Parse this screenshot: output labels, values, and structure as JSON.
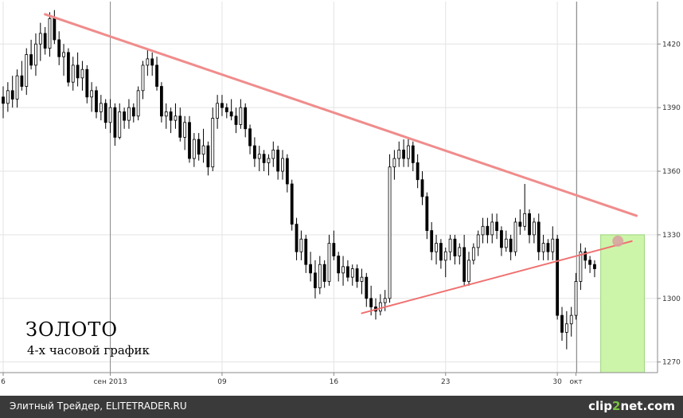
{
  "chart_data": {
    "type": "candlestick",
    "title": "ЗОЛОТО",
    "subtitle": "4-х часовой график",
    "ylim": [
      1265,
      1440
    ],
    "y_ticks": [
      1270,
      1300,
      1330,
      1360,
      1390,
      1420
    ],
    "x_ticks": [
      {
        "label": "6",
        "bar": 0
      },
      {
        "label": "сен 2013",
        "bar": 23
      },
      {
        "label": "09",
        "bar": 47
      },
      {
        "label": "16",
        "bar": 71
      },
      {
        "label": "23",
        "bar": 95
      },
      {
        "label": "30",
        "bar": 119
      },
      {
        "label": "окт",
        "bar": 123
      }
    ],
    "month_separators": [
      23,
      123
    ],
    "candles": [
      [
        1395,
        1400,
        1385,
        1392
      ],
      [
        1392,
        1402,
        1388,
        1398
      ],
      [
        1398,
        1405,
        1390,
        1394
      ],
      [
        1394,
        1408,
        1390,
        1405
      ],
      [
        1405,
        1412,
        1398,
        1400
      ],
      [
        1400,
        1418,
        1396,
        1415
      ],
      [
        1415,
        1422,
        1408,
        1410
      ],
      [
        1410,
        1425,
        1405,
        1420
      ],
      [
        1420,
        1430,
        1412,
        1425
      ],
      [
        1425,
        1428,
        1415,
        1418
      ],
      [
        1418,
        1435,
        1414,
        1432
      ],
      [
        1432,
        1436,
        1420,
        1422
      ],
      [
        1422,
        1426,
        1410,
        1414
      ],
      [
        1414,
        1420,
        1405,
        1416
      ],
      [
        1416,
        1418,
        1400,
        1402
      ],
      [
        1402,
        1414,
        1398,
        1410
      ],
      [
        1410,
        1416,
        1400,
        1404
      ],
      [
        1404,
        1412,
        1398,
        1408
      ],
      [
        1408,
        1410,
        1392,
        1395
      ],
      [
        1395,
        1402,
        1388,
        1398
      ],
      [
        1398,
        1400,
        1385,
        1388
      ],
      [
        1388,
        1396,
        1384,
        1392
      ],
      [
        1392,
        1394,
        1380,
        1383
      ],
      [
        1383,
        1394,
        1378,
        1390
      ],
      [
        1390,
        1392,
        1372,
        1376
      ],
      [
        1376,
        1392,
        1375,
        1388
      ],
      [
        1388,
        1390,
        1380,
        1384
      ],
      [
        1384,
        1394,
        1380,
        1390
      ],
      [
        1390,
        1392,
        1383,
        1386
      ],
      [
        1386,
        1400,
        1384,
        1398
      ],
      [
        1398,
        1412,
        1394,
        1410
      ],
      [
        1410,
        1418,
        1405,
        1413
      ],
      [
        1413,
        1416,
        1405,
        1410
      ],
      [
        1410,
        1414,
        1398,
        1400
      ],
      [
        1400,
        1402,
        1383,
        1386
      ],
      [
        1386,
        1392,
        1380,
        1388
      ],
      [
        1388,
        1390,
        1378,
        1384
      ],
      [
        1384,
        1392,
        1380,
        1386
      ],
      [
        1386,
        1390,
        1374,
        1376
      ],
      [
        1376,
        1386,
        1370,
        1383
      ],
      [
        1383,
        1386,
        1364,
        1366
      ],
      [
        1366,
        1378,
        1362,
        1375
      ],
      [
        1375,
        1378,
        1365,
        1368
      ],
      [
        1368,
        1380,
        1364,
        1372
      ],
      [
        1372,
        1374,
        1358,
        1362
      ],
      [
        1362,
        1390,
        1360,
        1385
      ],
      [
        1385,
        1396,
        1380,
        1392
      ],
      [
        1392,
        1396,
        1386,
        1390
      ],
      [
        1390,
        1392,
        1385,
        1388
      ],
      [
        1388,
        1394,
        1384,
        1386
      ],
      [
        1386,
        1390,
        1378,
        1382
      ],
      [
        1382,
        1394,
        1380,
        1390
      ],
      [
        1390,
        1392,
        1376,
        1380
      ],
      [
        1380,
        1382,
        1368,
        1372
      ],
      [
        1372,
        1376,
        1362,
        1366
      ],
      [
        1366,
        1372,
        1360,
        1368
      ],
      [
        1368,
        1370,
        1360,
        1364
      ],
      [
        1364,
        1368,
        1358,
        1366
      ],
      [
        1366,
        1374,
        1362,
        1370
      ],
      [
        1370,
        1372,
        1356,
        1360
      ],
      [
        1360,
        1370,
        1356,
        1366
      ],
      [
        1366,
        1368,
        1350,
        1354
      ],
      [
        1354,
        1356,
        1332,
        1335
      ],
      [
        1335,
        1338,
        1318,
        1322
      ],
      [
        1322,
        1332,
        1318,
        1328
      ],
      [
        1328,
        1330,
        1312,
        1316
      ],
      [
        1316,
        1322,
        1308,
        1312
      ],
      [
        1312,
        1318,
        1300,
        1305
      ],
      [
        1305,
        1320,
        1302,
        1316
      ],
      [
        1316,
        1318,
        1305,
        1308
      ],
      [
        1308,
        1330,
        1306,
        1326
      ],
      [
        1326,
        1332,
        1318,
        1320
      ],
      [
        1320,
        1322,
        1308,
        1312
      ],
      [
        1312,
        1320,
        1306,
        1315
      ],
      [
        1315,
        1318,
        1308,
        1310
      ],
      [
        1310,
        1316,
        1306,
        1314
      ],
      [
        1314,
        1316,
        1305,
        1308
      ],
      [
        1308,
        1314,
        1302,
        1310
      ],
      [
        1310,
        1312,
        1296,
        1300
      ],
      [
        1300,
        1306,
        1292,
        1296
      ],
      [
        1296,
        1300,
        1290,
        1294
      ],
      [
        1294,
        1302,
        1292,
        1298
      ],
      [
        1298,
        1304,
        1294,
        1300
      ],
      [
        1300,
        1368,
        1298,
        1362
      ],
      [
        1362,
        1370,
        1356,
        1366
      ],
      [
        1366,
        1374,
        1362,
        1370
      ],
      [
        1370,
        1375,
        1362,
        1366
      ],
      [
        1366,
        1376,
        1362,
        1372
      ],
      [
        1372,
        1374,
        1360,
        1364
      ],
      [
        1364,
        1368,
        1352,
        1356
      ],
      [
        1356,
        1360,
        1344,
        1348
      ],
      [
        1348,
        1350,
        1328,
        1332
      ],
      [
        1332,
        1336,
        1318,
        1322
      ],
      [
        1322,
        1330,
        1316,
        1326
      ],
      [
        1326,
        1328,
        1314,
        1318
      ],
      [
        1318,
        1324,
        1310,
        1322
      ],
      [
        1322,
        1330,
        1318,
        1328
      ],
      [
        1328,
        1330,
        1316,
        1320
      ],
      [
        1320,
        1326,
        1316,
        1324
      ],
      [
        1324,
        1330,
        1306,
        1308
      ],
      [
        1308,
        1322,
        1306,
        1318
      ],
      [
        1318,
        1326,
        1316,
        1324
      ],
      [
        1324,
        1332,
        1320,
        1330
      ],
      [
        1330,
        1338,
        1326,
        1334
      ],
      [
        1334,
        1338,
        1326,
        1330
      ],
      [
        1330,
        1340,
        1326,
        1336
      ],
      [
        1336,
        1340,
        1328,
        1332
      ],
      [
        1332,
        1334,
        1320,
        1324
      ],
      [
        1324,
        1332,
        1322,
        1328
      ],
      [
        1328,
        1330,
        1318,
        1322
      ],
      [
        1322,
        1338,
        1320,
        1336
      ],
      [
        1336,
        1342,
        1330,
        1334
      ],
      [
        1334,
        1354,
        1332,
        1340
      ],
      [
        1340,
        1342,
        1326,
        1330
      ],
      [
        1330,
        1338,
        1326,
        1336
      ],
      [
        1336,
        1340,
        1318,
        1322
      ],
      [
        1322,
        1330,
        1318,
        1326
      ],
      [
        1326,
        1328,
        1318,
        1322
      ],
      [
        1322,
        1334,
        1318,
        1328
      ],
      [
        1328,
        1330,
        1290,
        1292
      ],
      [
        1292,
        1296,
        1280,
        1284
      ],
      [
        1284,
        1294,
        1276,
        1288
      ],
      [
        1288,
        1296,
        1282,
        1292
      ],
      [
        1292,
        1312,
        1290,
        1308
      ],
      [
        1308,
        1326,
        1304,
        1322
      ],
      [
        1322,
        1324,
        1314,
        1318
      ],
      [
        1318,
        1320,
        1312,
        1316
      ],
      [
        1316,
        1318,
        1310,
        1314
      ]
    ],
    "trendlines": [
      {
        "name": "resistance",
        "from": {
          "bar": 9,
          "price": 1434
        },
        "to": {
          "bar": 136,
          "price": 1339
        },
        "color": "#f08c8c",
        "width": 3
      },
      {
        "name": "support",
        "from": {
          "bar": 77,
          "price": 1293
        },
        "to": {
          "bar": 135,
          "price": 1327
        },
        "color": "#f07070",
        "width": 2
      }
    ],
    "highlight": {
      "from_bar": 129,
      "to_bar": 137,
      "color": "#ccf5aa",
      "border": "#9cd47a"
    },
    "marker": {
      "bar": 132,
      "price": 1327,
      "color": "#d9a0a0"
    },
    "candle_color_up": "#ffffff",
    "candle_color_down": "#000000"
  },
  "footer": {
    "text": "Элитный Трейдер, ELITETRADER.RU",
    "watermark_a": "clip",
    "watermark_b": "2",
    "watermark_c": "net.com"
  }
}
